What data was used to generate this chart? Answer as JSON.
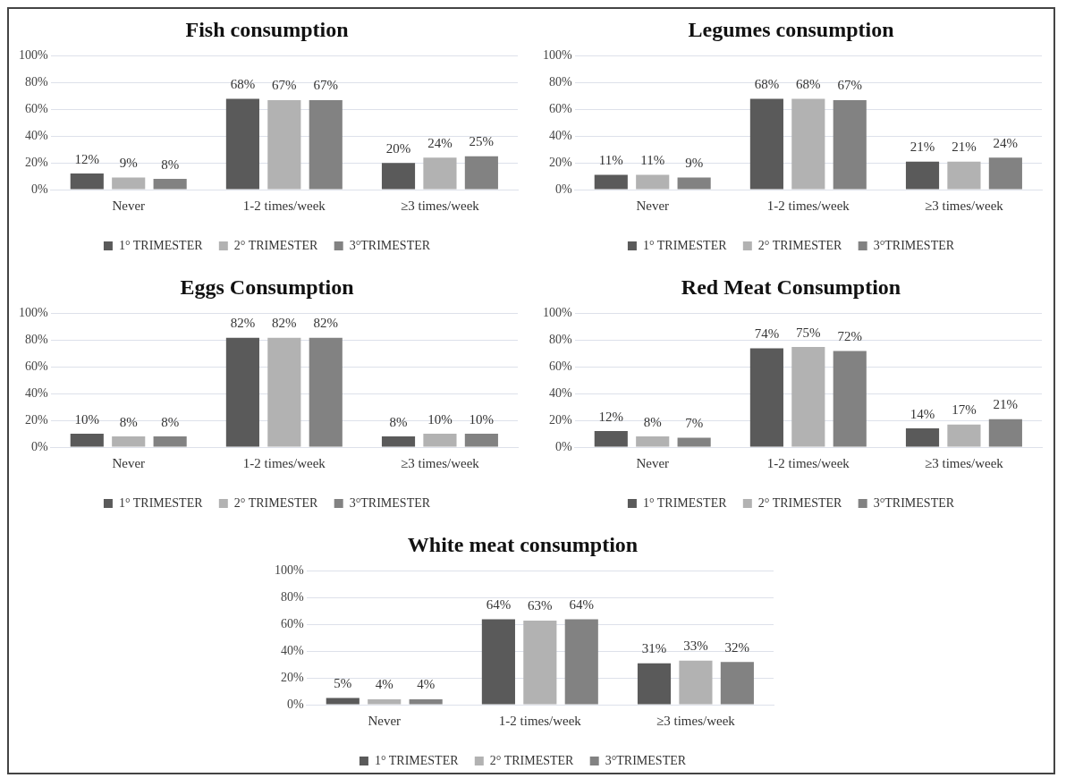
{
  "chart_data": [
    {
      "type": "bar",
      "title": "Fish consumption",
      "categories": [
        "Never",
        "1-2 times/week",
        "≥3 times/week"
      ],
      "ylim": [
        0,
        100
      ],
      "yticks": [
        {
          "value": 0,
          "label": "0%"
        },
        {
          "value": 20,
          "label": "20%"
        },
        {
          "value": 40,
          "label": "40%"
        },
        {
          "value": 60,
          "label": "60%"
        },
        {
          "value": 80,
          "label": "80%"
        },
        {
          "value": 100,
          "label": "100%"
        }
      ],
      "grid": "y",
      "legend": "bottom",
      "series": [
        {
          "name": "1° TRIMESTER",
          "color": "#5a5a5a",
          "values": [
            12,
            68,
            20
          ],
          "value_labels": [
            "12%",
            "68%",
            "20%"
          ]
        },
        {
          "name": "2° TRIMESTER",
          "color": "#b2b2b2",
          "values": [
            9,
            67,
            24
          ],
          "value_labels": [
            "9%",
            "67%",
            "24%"
          ]
        },
        {
          "name": "3°TRIMESTER",
          "color": "#828282",
          "values": [
            8,
            67,
            25
          ],
          "value_labels": [
            "8%",
            "67%",
            "25%"
          ]
        }
      ]
    },
    {
      "type": "bar",
      "title": "Legumes consumption",
      "categories": [
        "Never",
        "1-2 times/week",
        "≥3 times/week"
      ],
      "ylim": [
        0,
        100
      ],
      "yticks": [
        {
          "value": 0,
          "label": "0%"
        },
        {
          "value": 20,
          "label": "20%"
        },
        {
          "value": 40,
          "label": "40%"
        },
        {
          "value": 60,
          "label": "60%"
        },
        {
          "value": 80,
          "label": "80%"
        },
        {
          "value": 100,
          "label": "100%"
        }
      ],
      "grid": "y",
      "legend": "bottom",
      "series": [
        {
          "name": "1° TRIMESTER",
          "color": "#5a5a5a",
          "values": [
            11,
            68,
            21
          ],
          "value_labels": [
            "11%",
            "68%",
            "21%"
          ]
        },
        {
          "name": "2° TRIMESTER",
          "color": "#b2b2b2",
          "values": [
            11,
            68,
            21
          ],
          "value_labels": [
            "11%",
            "68%",
            "21%"
          ]
        },
        {
          "name": "3°TRIMESTER",
          "color": "#828282",
          "values": [
            9,
            67,
            24
          ],
          "value_labels": [
            "9%",
            "67%",
            "24%"
          ]
        }
      ]
    },
    {
      "type": "bar",
      "title": "Eggs Consumption",
      "categories": [
        "Never",
        "1-2 times/week",
        "≥3 times/week"
      ],
      "ylim": [
        0,
        100
      ],
      "yticks": [
        {
          "value": 0,
          "label": "0%"
        },
        {
          "value": 20,
          "label": "20%"
        },
        {
          "value": 40,
          "label": "40%"
        },
        {
          "value": 60,
          "label": "60%"
        },
        {
          "value": 80,
          "label": "80%"
        },
        {
          "value": 100,
          "label": "100%"
        }
      ],
      "grid": "y",
      "legend": "bottom",
      "series": [
        {
          "name": "1° TRIMESTER",
          "color": "#5a5a5a",
          "values": [
            10,
            82,
            8
          ],
          "value_labels": [
            "10%",
            "82%",
            "8%"
          ]
        },
        {
          "name": "2° TRIMESTER",
          "color": "#b2b2b2",
          "values": [
            8,
            82,
            10
          ],
          "value_labels": [
            "8%",
            "82%",
            "10%"
          ]
        },
        {
          "name": "3°TRIMESTER",
          "color": "#828282",
          "values": [
            8,
            82,
            10
          ],
          "value_labels": [
            "8%",
            "82%",
            "10%"
          ]
        }
      ]
    },
    {
      "type": "bar",
      "title": "Red Meat Consumption",
      "categories": [
        "Never",
        "1-2 times/week",
        "≥3 times/week"
      ],
      "ylim": [
        0,
        100
      ],
      "yticks": [
        {
          "value": 0,
          "label": "0%"
        },
        {
          "value": 20,
          "label": "20%"
        },
        {
          "value": 40,
          "label": "40%"
        },
        {
          "value": 60,
          "label": "60%"
        },
        {
          "value": 80,
          "label": "80%"
        },
        {
          "value": 100,
          "label": "100%"
        }
      ],
      "grid": "y",
      "legend": "bottom",
      "series": [
        {
          "name": "1° TRIMESTER",
          "color": "#5a5a5a",
          "values": [
            12,
            74,
            14
          ],
          "value_labels": [
            "12%",
            "74%",
            "14%"
          ]
        },
        {
          "name": "2° TRIMESTER",
          "color": "#b2b2b2",
          "values": [
            8,
            75,
            17
          ],
          "value_labels": [
            "8%",
            "75%",
            "17%"
          ]
        },
        {
          "name": "3°TRIMESTER",
          "color": "#828282",
          "values": [
            7,
            72,
            21
          ],
          "value_labels": [
            "7%",
            "72%",
            "21%"
          ]
        }
      ]
    },
    {
      "type": "bar",
      "title": "White meat consumption",
      "categories": [
        "Never",
        "1-2 times/week",
        "≥3 times/week"
      ],
      "ylim": [
        0,
        100
      ],
      "yticks": [
        {
          "value": 0,
          "label": "0%"
        },
        {
          "value": 20,
          "label": "20%"
        },
        {
          "value": 40,
          "label": "40%"
        },
        {
          "value": 60,
          "label": "60%"
        },
        {
          "value": 80,
          "label": "80%"
        },
        {
          "value": 100,
          "label": "100%"
        }
      ],
      "grid": "y",
      "legend": "bottom",
      "series": [
        {
          "name": "1° TRIMESTER",
          "color": "#5a5a5a",
          "values": [
            5,
            64,
            31
          ],
          "value_labels": [
            "5%",
            "64%",
            "31%"
          ]
        },
        {
          "name": "2° TRIMESTER",
          "color": "#b2b2b2",
          "values": [
            4,
            63,
            33
          ],
          "value_labels": [
            "4%",
            "63%",
            "33%"
          ]
        },
        {
          "name": "3°TRIMESTER",
          "color": "#828282",
          "values": [
            4,
            64,
            32
          ],
          "value_labels": [
            "4%",
            "64%",
            "32%"
          ]
        }
      ]
    }
  ]
}
